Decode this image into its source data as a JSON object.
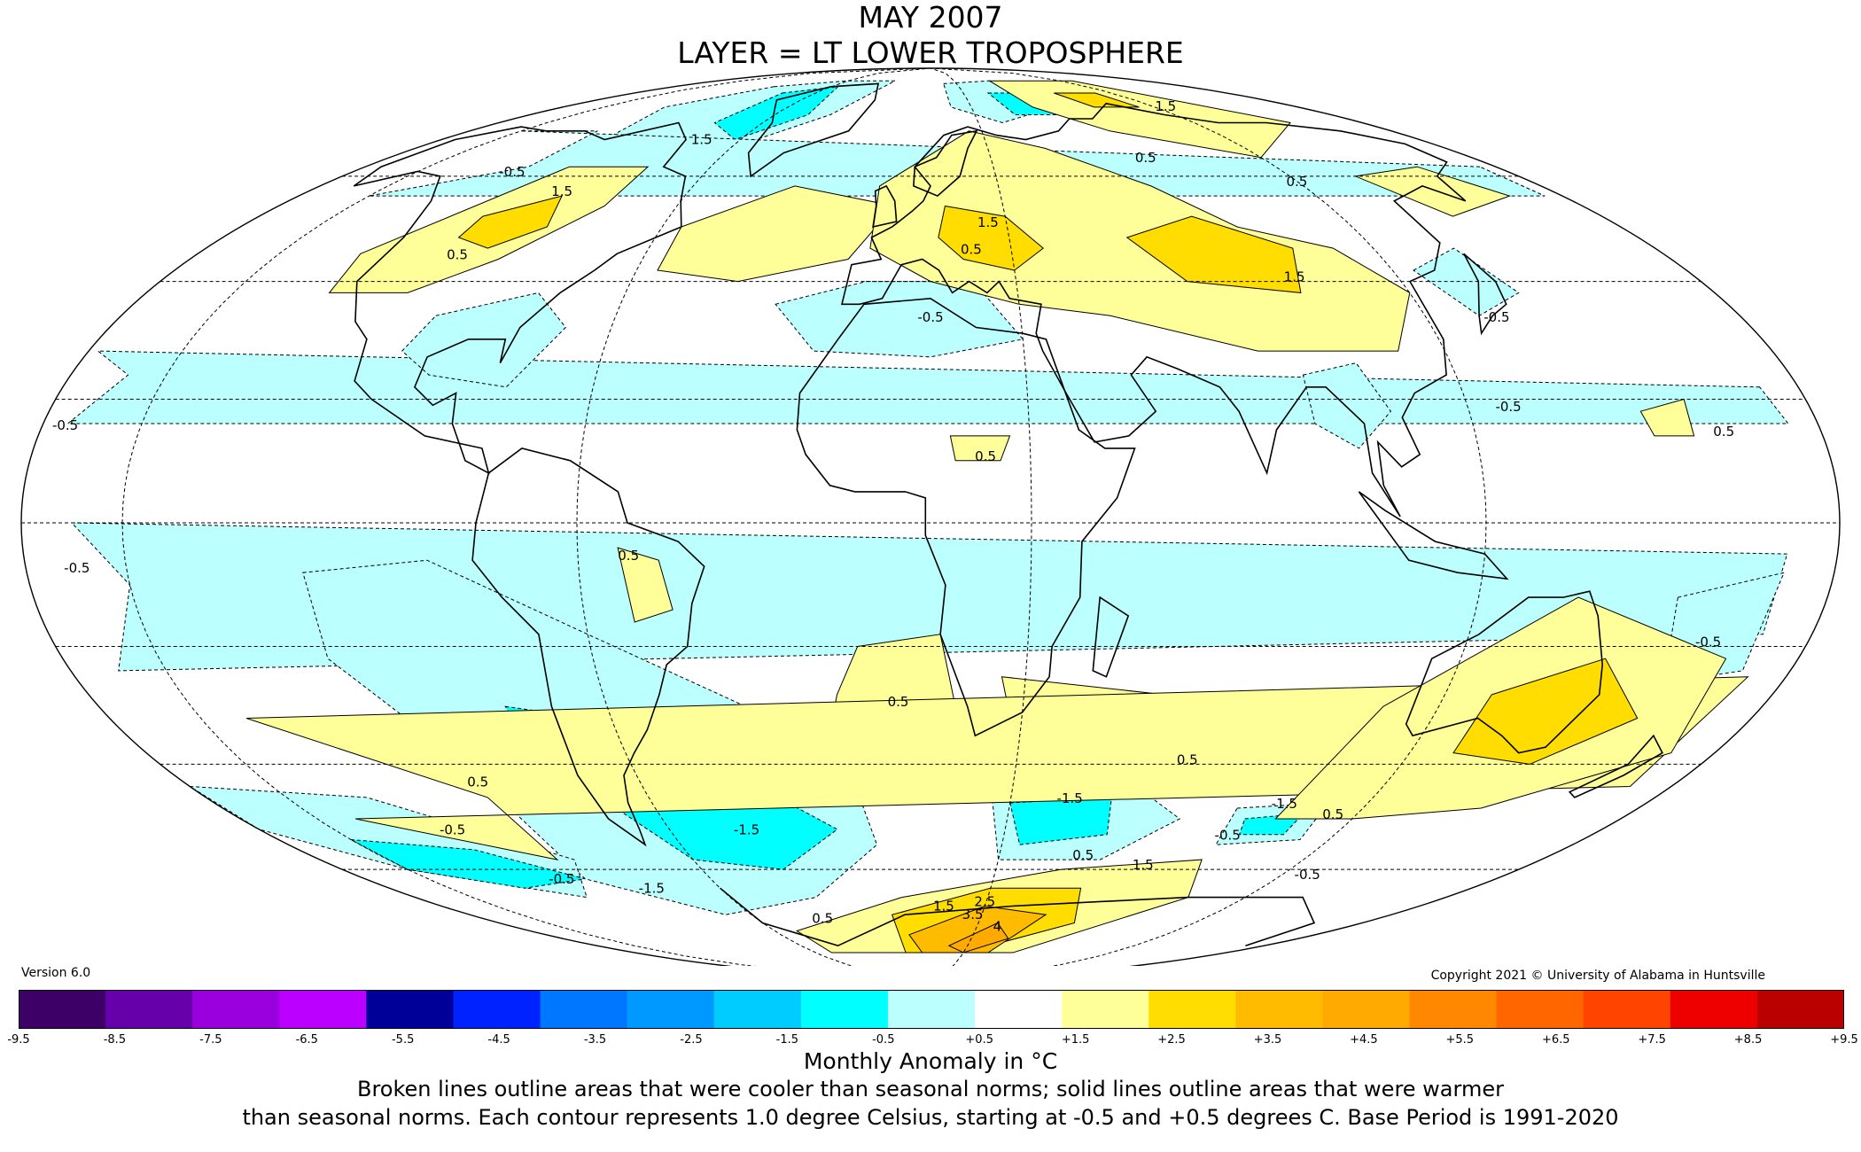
{
  "title": {
    "line1": "MAY 2007",
    "line2": "LAYER = LT LOWER TROPOSPHERE"
  },
  "version": "Version 6.0",
  "copyright": "Copyright 2021 © University of Alabama in Huntsville",
  "legend": {
    "units": "Monthly Anomaly in °C",
    "ticks": [
      "-9.5",
      "-8.5",
      "-7.5",
      "-6.5",
      "-5.5",
      "-4.5",
      "-3.5",
      "-2.5",
      "-1.5",
      "-0.5",
      "+0.5",
      "+1.5",
      "+2.5",
      "+3.5",
      "+4.5",
      "+5.5",
      "+6.5",
      "+7.5",
      "+8.5",
      "+9.5"
    ],
    "colors": [
      "#3d0066",
      "#6600aa",
      "#9900dd",
      "#bb00ff",
      "#000099",
      "#0022ff",
      "#0077ff",
      "#0099ff",
      "#00ccff",
      "#00ffff",
      "#bbffff",
      "#ffffff",
      "#ffff99",
      "#ffdd00",
      "#ffbb00",
      "#ffaa00",
      "#ff8800",
      "#ff6600",
      "#ff4400",
      "#ee0000",
      "#bb0000"
    ]
  },
  "caption": {
    "line1": "Broken lines outline areas that were cooler than seasonal norms; solid lines outline areas that were warmer",
    "line2": "than seasonal norms. Each contour represents 1.0 degree Celsius, starting at -0.5 and +0.5 degrees C. Base Period is 1991-2020"
  },
  "contour_labels": [
    {
      "text": "0.5",
      "lon": -105,
      "lat": 44
    },
    {
      "text": "1.5",
      "lon": -95,
      "lat": 56
    },
    {
      "text": "-0.5",
      "lon": -118,
      "lat": 60
    },
    {
      "text": "1.5",
      "lon": -72,
      "lat": 67
    },
    {
      "text": "-0.5",
      "lon": -165,
      "lat": 15
    },
    {
      "text": "0.5",
      "lon": 20,
      "lat": 45
    },
    {
      "text": "1.5",
      "lon": 25,
      "lat": 50
    },
    {
      "text": "-0.5",
      "lon": 10,
      "lat": 33
    },
    {
      "text": "0.5",
      "lon": 80,
      "lat": 63
    },
    {
      "text": "1.5",
      "lon": 120,
      "lat": 75
    },
    {
      "text": "1.5",
      "lon": 95,
      "lat": 40
    },
    {
      "text": "0.5",
      "lon": 118,
      "lat": 58
    },
    {
      "text": "-0.5",
      "lon": 135,
      "lat": 33
    },
    {
      "text": "-0.5",
      "lon": 128,
      "lat": 18
    },
    {
      "text": "0.5",
      "lon": 170,
      "lat": 14
    },
    {
      "text": "0.5",
      "lon": 21,
      "lat": 10
    },
    {
      "text": "0.5",
      "lon": -50,
      "lat": -6
    },
    {
      "text": "-0.5",
      "lon": -160,
      "lat": -8
    },
    {
      "text": "0.5",
      "lon": 3,
      "lat": -30
    },
    {
      "text": "0.5",
      "lon": 70,
      "lat": -40
    },
    {
      "text": "0.5",
      "lon": -100,
      "lat": -44
    },
    {
      "text": "-0.5",
      "lon": -120,
      "lat": -53
    },
    {
      "text": "-0.5",
      "lon": -110,
      "lat": -63
    },
    {
      "text": "-1.5",
      "lon": -85,
      "lat": -65
    },
    {
      "text": "-1.5",
      "lon": -40,
      "lat": -53
    },
    {
      "text": "-1.5",
      "lon": 45,
      "lat": -47
    },
    {
      "text": "-1.5",
      "lon": 100,
      "lat": -48
    },
    {
      "text": "-0.5",
      "lon": 92,
      "lat": -54
    },
    {
      "text": "0.5",
      "lon": 115,
      "lat": -50
    },
    {
      "text": "0.5",
      "lon": 55,
      "lat": -58
    },
    {
      "text": "1.5",
      "lon": 75,
      "lat": -60
    },
    {
      "text": "-0.5",
      "lon": 130,
      "lat": -62
    },
    {
      "text": "-0.5",
      "lon": 170,
      "lat": -20
    },
    {
      "text": "2.5",
      "lon": 30,
      "lat": -68
    },
    {
      "text": "1.5",
      "lon": 15,
      "lat": -69
    },
    {
      "text": "3.5",
      "lon": 27,
      "lat": -71
    },
    {
      "text": "4",
      "lon": 40,
      "lat": -74
    },
    {
      "text": "0.5",
      "lon": -35,
      "lat": -72
    }
  ]
}
